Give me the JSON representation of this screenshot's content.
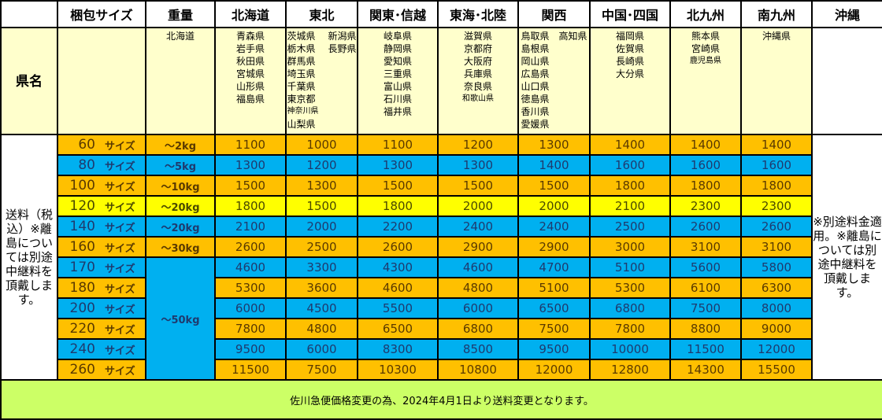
{
  "header": {
    "columns": [
      "",
      "梱包サイズ",
      "重量",
      "北海道",
      "東北",
      "関東･信越",
      "東海･北陸",
      "関西",
      "中国･四国",
      "北九州",
      "南九州",
      "沖縄"
    ]
  },
  "prefecture_row": {
    "label": "県名",
    "regions": [
      [
        "北海道"
      ],
      [
        "青森県",
        "岩手県",
        "秋田県",
        "宮城県",
        "山形県",
        "福島県"
      ],
      [
        "茨城県",
        "栃木県",
        "群馬県",
        "埼玉県",
        "千葉県",
        "東京都",
        "神奈川県",
        "山梨県",
        "新潟県",
        "長野県"
      ],
      [
        "岐阜県",
        "静岡県",
        "愛知県",
        "三重県",
        "富山県",
        "石川県",
        "福井県"
      ],
      [
        "滋賀県",
        "京都府",
        "大阪府",
        "兵庫県",
        "奈良県",
        "和歌山県"
      ],
      [
        "鳥取県",
        "島根県",
        "岡山県",
        "広島県",
        "山口県",
        "徳島県",
        "香川県",
        "愛媛県",
        "高知県"
      ],
      [
        "福岡県",
        "佐賀県",
        "長崎県",
        "大分県"
      ],
      [
        "熊本県",
        "宮崎県",
        "鹿児島県"
      ],
      [
        "沖縄県"
      ]
    ]
  },
  "left_note": "送料（税込）※離島については別途中継料を頂戴します。",
  "right_note": "※別途料金適用。※離島については別途中継料を頂戴します。",
  "size_suffix": "サイズ",
  "rows": [
    {
      "size": "60",
      "weight": "～2kg",
      "color": "#FFC000",
      "prices": [
        1100,
        1000,
        1100,
        1200,
        1300,
        1400,
        1400,
        1400
      ]
    },
    {
      "size": "80",
      "weight": "～5kg",
      "color": "#00B0F0",
      "prices": [
        1300,
        1200,
        1300,
        1300,
        1400,
        1600,
        1600,
        1600
      ]
    },
    {
      "size": "100",
      "weight": "～10kg",
      "color": "#FFC000",
      "prices": [
        1500,
        1300,
        1500,
        1500,
        1500,
        1800,
        1800,
        1800
      ]
    },
    {
      "size": "120",
      "weight": "～20kg",
      "color": "#FFFF00",
      "prices": [
        1800,
        1500,
        1800,
        2000,
        2000,
        2100,
        2300,
        2300
      ]
    },
    {
      "size": "140",
      "weight": "～20kg",
      "color": "#00B0F0",
      "prices": [
        2100,
        2000,
        2200,
        2400,
        2400,
        2500,
        2600,
        2600
      ]
    },
    {
      "size": "160",
      "weight": "～30kg",
      "color": "#FFC000",
      "prices": [
        2600,
        2500,
        2600,
        2900,
        2900,
        3000,
        3100,
        3100
      ]
    },
    {
      "size": "170",
      "weight": "～50kg",
      "color": "#00B0F0",
      "prices": [
        4600,
        3300,
        4300,
        4600,
        4700,
        5100,
        5600,
        5800
      ]
    },
    {
      "size": "180",
      "color": "#FFC000",
      "prices": [
        5300,
        3600,
        4600,
        4800,
        5100,
        5300,
        6100,
        6300
      ]
    },
    {
      "size": "200",
      "color": "#00B0F0",
      "prices": [
        6000,
        4500,
        5500,
        6000,
        6500,
        6800,
        7500,
        8000
      ]
    },
    {
      "size": "220",
      "color": "#FFC000",
      "prices": [
        7800,
        4800,
        6500,
        6800,
        7500,
        7800,
        8800,
        9000
      ]
    },
    {
      "size": "240",
      "color": "#00B0F0",
      "prices": [
        9500,
        6000,
        8300,
        8500,
        9500,
        10000,
        11500,
        12000
      ]
    },
    {
      "size": "260",
      "color": "#FFC000",
      "prices": [
        11500,
        7500,
        10300,
        10800,
        12000,
        12800,
        14300,
        15500
      ]
    }
  ],
  "footer": "佐川急便価格変更の為、2024年4月1日より送料変更となります。",
  "colors": {
    "orange": "#FFC000",
    "blue": "#00B0F0",
    "yellow": "#FFFF00",
    "pale_yellow": "#FFFFCC",
    "footer_green": "#CCFF66"
  }
}
